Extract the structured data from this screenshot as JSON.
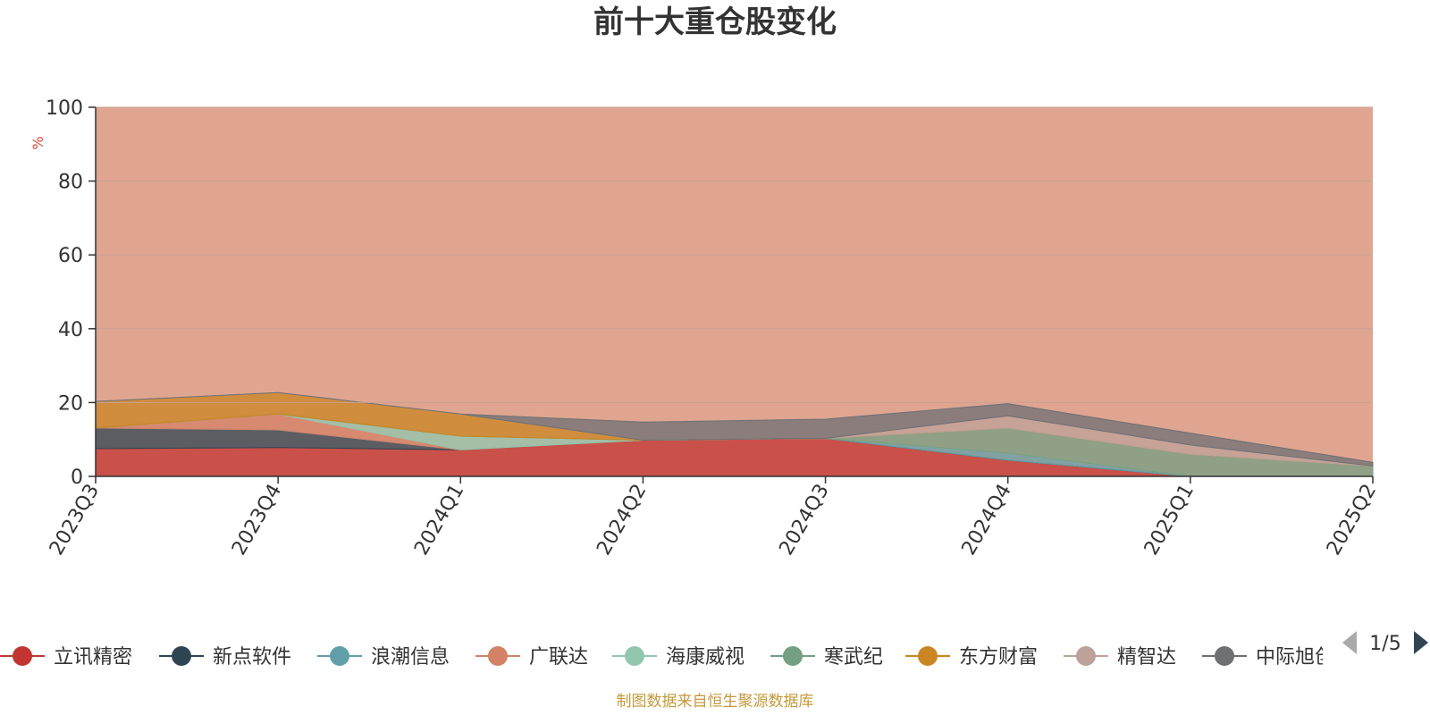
{
  "chart_data": {
    "type": "area",
    "title": "前十大重仓股变化",
    "y_unit": "%",
    "ylim": [
      0,
      100
    ],
    "y_ticks": [
      0,
      20,
      40,
      60,
      80,
      100
    ],
    "grid": true,
    "stacked": true,
    "categories": [
      "2023Q3",
      "2023Q4",
      "2024Q1",
      "2024Q2",
      "2024Q3",
      "2024Q4",
      "2025Q1",
      "2025Q2"
    ],
    "series": [
      {
        "name": "立讯精密",
        "color": "#c23531",
        "values": [
          7.5,
          7.8,
          7.2,
          9.8,
          10.3,
          4.4,
          0,
          0
        ]
      },
      {
        "name": "新点软件",
        "color": "#2f4554",
        "values": [
          5.6,
          4.8,
          0,
          0,
          0,
          0,
          0,
          0
        ]
      },
      {
        "name": "浪潮信息",
        "color": "#61a0a8",
        "values": [
          0,
          0,
          0,
          0,
          0,
          1.9,
          0,
          0
        ]
      },
      {
        "name": "广联达",
        "color": "#d48265",
        "values": [
          0,
          4.3,
          0,
          0,
          0,
          0,
          0,
          0
        ]
      },
      {
        "name": "海康威视",
        "color": "#91c7ae",
        "values": [
          0,
          0,
          3.7,
          0,
          0,
          0,
          0,
          0
        ]
      },
      {
        "name": "寒武纪",
        "color": "#749f83",
        "values": [
          0,
          0,
          0,
          0,
          0,
          6.8,
          6.0,
          2.8
        ]
      },
      {
        "name": "东方财富",
        "color": "#ca8622",
        "values": [
          7.2,
          5.8,
          6.0,
          0,
          0,
          0,
          0,
          0
        ]
      },
      {
        "name": "精智达",
        "color": "#bda29a",
        "values": [
          0,
          0,
          0,
          0,
          0,
          3.3,
          2.5,
          0
        ]
      },
      {
        "name": "中际旭创",
        "color": "#6e7074",
        "values": [
          0,
          0,
          0,
          4.9,
          5.2,
          3.3,
          3.2,
          1.0
        ]
      }
    ],
    "legend_page": "1/5"
  },
  "source_note": "制图数据来自恒生聚源数据库",
  "colors": {
    "remainder_fill": "#dfa590",
    "axis": "#333333",
    "grid": "#c9a090",
    "unit_label": "#e54535",
    "source_text": "#c59a3a",
    "page_arrow_inactive": "#aaaaaa",
    "page_arrow_active": "#2f4554"
  }
}
